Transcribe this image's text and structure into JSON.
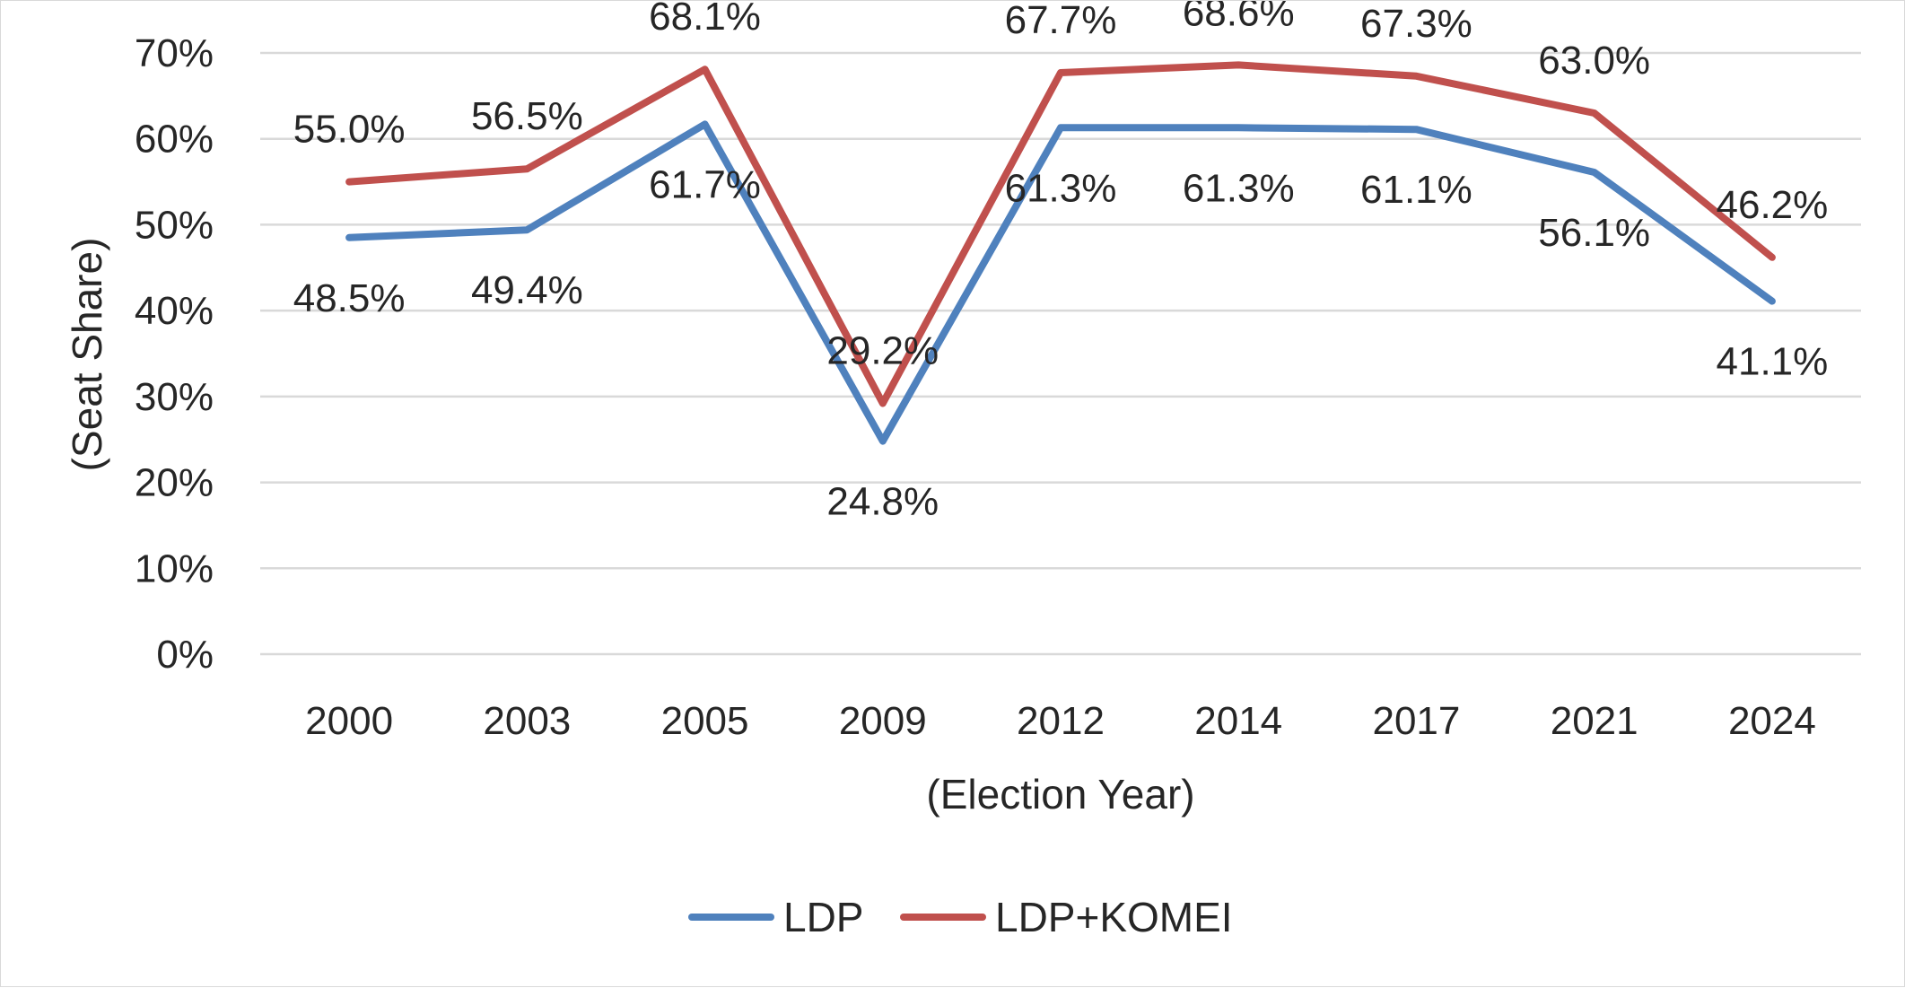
{
  "chart_data": {
    "type": "line",
    "title": "",
    "xlabel": "(Election Year)",
    "ylabel": "(Seat Share)",
    "categories": [
      "2000",
      "2003",
      "2005",
      "2009",
      "2012",
      "2014",
      "2017",
      "2021",
      "2024"
    ],
    "ylim": [
      0,
      70
    ],
    "yticks": [
      "0%",
      "10%",
      "20%",
      "30%",
      "40%",
      "50%",
      "60%",
      "70%"
    ],
    "grid": true,
    "legend_position": "bottom",
    "series": [
      {
        "name": "LDP",
        "color": "#4f81bd",
        "values": [
          48.5,
          49.4,
          61.7,
          24.8,
          61.3,
          61.3,
          61.1,
          56.1,
          41.1
        ],
        "labels": [
          "48.5%",
          "49.4%",
          "61.7%",
          "24.8%",
          "61.3%",
          "61.3%",
          "61.1%",
          "56.1%",
          "41.1%"
        ]
      },
      {
        "name": "LDP+KOMEI",
        "color": "#c0504d",
        "values": [
          55.0,
          56.5,
          68.1,
          29.2,
          67.7,
          68.6,
          67.3,
          63.0,
          46.2
        ],
        "labels": [
          "55.0%",
          "56.5%",
          "68.1%",
          "29.2%",
          "67.7%",
          "68.6%",
          "67.3%",
          "63.0%",
          "46.2%"
        ]
      }
    ]
  }
}
